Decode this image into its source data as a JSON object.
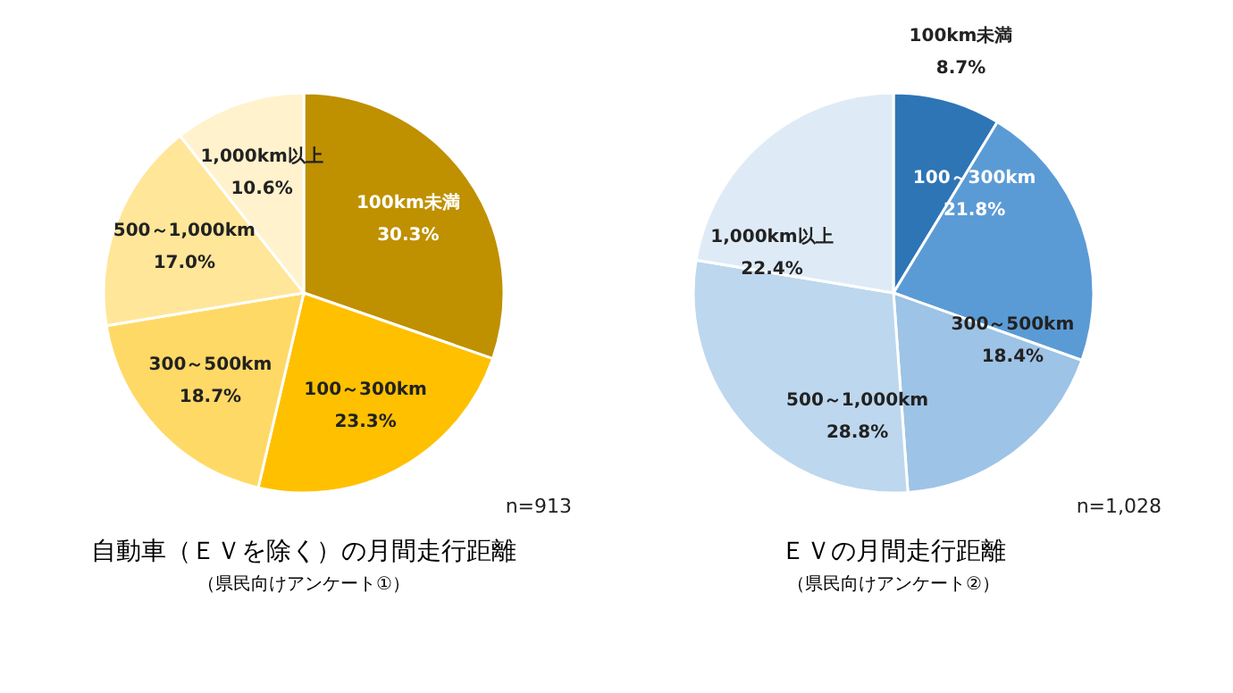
{
  "chart_data": [
    {
      "type": "pie",
      "title": "自動車（ＥＶを除く）の月間走行距離",
      "categories": [
        "100km未満",
        "100～300km",
        "300～500km",
        "500～1,000km",
        "1,000km以上"
      ],
      "values": [
        30.3,
        23.3,
        18.7,
        17.0,
        10.6
      ],
      "colors": [
        "#bf9000",
        "#ffc000",
        "#ffd966",
        "#ffe699",
        "#fff2cc"
      ],
      "value_labels": [
        "30.3%",
        "23.3%",
        "18.7%",
        "17.0%",
        "10.6%"
      ],
      "annotations": [
        "n=913",
        "（県民向けアンケート①）"
      ]
    },
    {
      "type": "pie",
      "title": "ＥＶの月間走行距離",
      "categories": [
        "100km未満",
        "100～300km",
        "300～500km",
        "500～1,000km",
        "1,000km以上"
      ],
      "values": [
        8.7,
        21.8,
        18.4,
        28.8,
        22.4
      ],
      "colors": [
        "#2e75b6",
        "#5b9bd5",
        "#9dc3e6",
        "#bdd7ee",
        "#deebf7"
      ],
      "value_labels": [
        "8.7%",
        "21.8%",
        "18.4%",
        "28.8%",
        "22.4%"
      ],
      "annotations": [
        "n=1,028",
        "（県民向けアンケート②）"
      ]
    }
  ]
}
